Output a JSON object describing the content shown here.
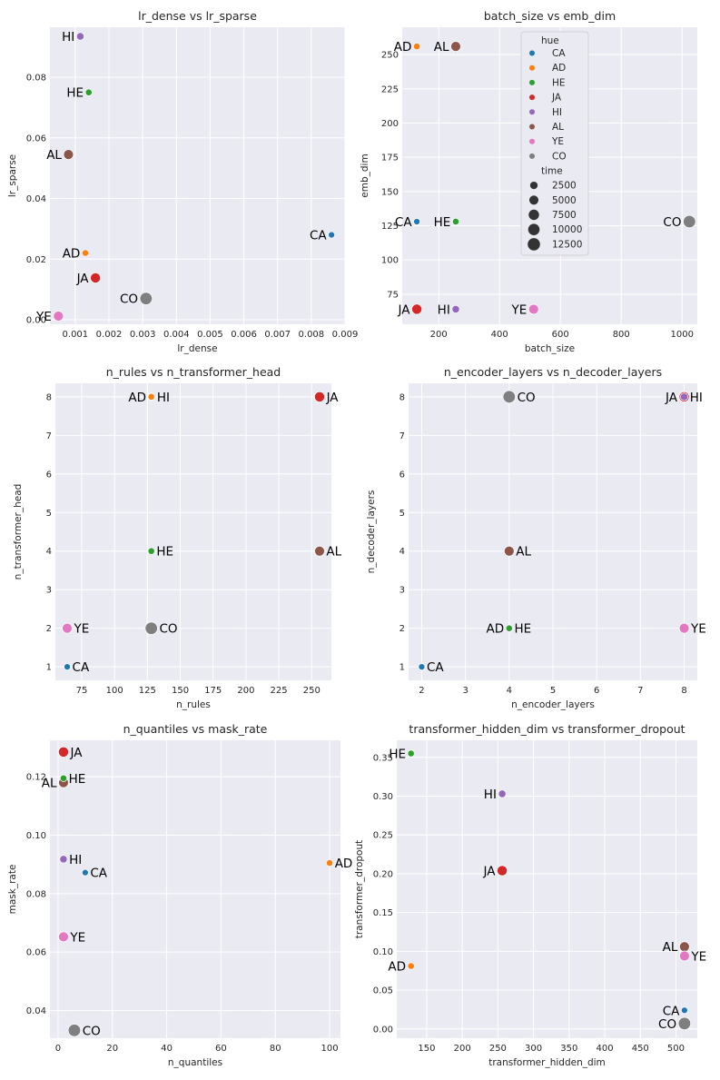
{
  "hue_palette": {
    "CA": "#1f77b4",
    "AD": "#ff7f0e",
    "HE": "#2ca02c",
    "JA": "#d62728",
    "HI": "#9467bd",
    "AL": "#8c564b",
    "YE": "#e377c2",
    "CO": "#7f7f7f"
  },
  "colors": {
    "axes_bg": "#eaeaf2",
    "grid": "#ffffff",
    "text": "#262626"
  },
  "legend": {
    "hue_title": "hue",
    "hue_entries": [
      "CA",
      "AD",
      "HE",
      "JA",
      "HI",
      "AL",
      "YE",
      "CO"
    ],
    "size_title": "time",
    "size_entries": [
      "2500",
      "5000",
      "7500",
      "10000",
      "12500"
    ]
  },
  "chart_data": [
    {
      "type": "scatter",
      "title": "lr_dense vs lr_sparse",
      "xlabel": "lr_dense",
      "ylabel": "lr_sparse",
      "xlim": [
        0.00025,
        0.009
      ],
      "ylim": [
        -0.0015,
        0.0965
      ],
      "xticks": [
        "0.001",
        "0.002",
        "0.003",
        "0.004",
        "0.005",
        "0.006",
        "0.007",
        "0.008",
        "0.009"
      ],
      "yticks": [
        "0.00",
        "0.02",
        "0.04",
        "0.06",
        "0.08"
      ],
      "points": [
        {
          "label": "HI",
          "x": 0.00115,
          "y": 0.0935,
          "size": 2500,
          "text_side": "left"
        },
        {
          "label": "HE",
          "x": 0.0014,
          "y": 0.075,
          "size": 1500,
          "text_side": "left"
        },
        {
          "label": "AL",
          "x": 0.0008,
          "y": 0.0545,
          "size": 6500,
          "text_side": "left"
        },
        {
          "label": "CA",
          "x": 0.0086,
          "y": 0.028,
          "size": 1200,
          "text_side": "left"
        },
        {
          "label": "AD",
          "x": 0.0013,
          "y": 0.022,
          "size": 1500,
          "text_side": "left"
        },
        {
          "label": "JA",
          "x": 0.0016,
          "y": 0.0138,
          "size": 7000,
          "text_side": "left"
        },
        {
          "label": "CO",
          "x": 0.0031,
          "y": 0.007,
          "size": 12500,
          "text_side": "left"
        },
        {
          "label": "YE",
          "x": 0.0005,
          "y": 0.0012,
          "size": 6500,
          "text_side": "left"
        }
      ]
    },
    {
      "type": "scatter",
      "title": "batch_size vs emb_dim",
      "xlabel": "batch_size",
      "ylabel": "emb_dim",
      "xlim": [
        80,
        1050
      ],
      "ylim": [
        53,
        270
      ],
      "xticks": [
        "200",
        "400",
        "600",
        "800",
        "1000"
      ],
      "yticks": [
        "75",
        "100",
        "125",
        "150",
        "175",
        "200",
        "225",
        "250"
      ],
      "points": [
        {
          "label": "AD",
          "x": 128,
          "y": 256,
          "size": 1500,
          "text_side": "left"
        },
        {
          "label": "AL",
          "x": 256,
          "y": 256,
          "size": 6500,
          "text_side": "left"
        },
        {
          "label": "CA",
          "x": 128,
          "y": 128,
          "size": 1200,
          "text_side": "left"
        },
        {
          "label": "HE",
          "x": 256,
          "y": 128,
          "size": 1500,
          "text_side": "left"
        },
        {
          "label": "CO",
          "x": 1024,
          "y": 128,
          "size": 12500,
          "text_side": "left"
        },
        {
          "label": "JA",
          "x": 128,
          "y": 64,
          "size": 7000,
          "text_side": "left"
        },
        {
          "label": "HI",
          "x": 256,
          "y": 64,
          "size": 2500,
          "text_side": "left"
        },
        {
          "label": "YE",
          "x": 512,
          "y": 64,
          "size": 6500,
          "text_side": "left"
        }
      ]
    },
    {
      "type": "scatter",
      "title": "n_rules vs n_transformer_head",
      "xlabel": "n_rules",
      "ylabel": "n_transformer_head",
      "xlim": [
        55,
        265
      ],
      "ylim": [
        0.65,
        8.35
      ],
      "xticks": [
        "75",
        "100",
        "125",
        "150",
        "175",
        "200",
        "225",
        "250"
      ],
      "yticks": [
        "1",
        "2",
        "3",
        "4",
        "5",
        "6",
        "7",
        "8"
      ],
      "points": [
        {
          "label": "AD",
          "x": 128,
          "y": 8,
          "size": 1500,
          "text_side": "left"
        },
        {
          "label": "HI",
          "x": 128,
          "y": 8,
          "size": 2500,
          "text_side": "right"
        },
        {
          "label": "JA",
          "x": 256,
          "y": 8,
          "size": 7000,
          "text_side": "right"
        },
        {
          "label": "HE",
          "x": 128,
          "y": 4,
          "size": 1500,
          "text_side": "right"
        },
        {
          "label": "AL",
          "x": 256,
          "y": 4,
          "size": 6500,
          "text_side": "right"
        },
        {
          "label": "YE",
          "x": 64,
          "y": 2,
          "size": 6500,
          "text_side": "right"
        },
        {
          "label": "CO",
          "x": 128,
          "y": 2,
          "size": 12500,
          "text_side": "right"
        },
        {
          "label": "CA",
          "x": 64,
          "y": 1,
          "size": 1200,
          "text_side": "right"
        }
      ]
    },
    {
      "type": "scatter",
      "title": "n_encoder_layers vs n_decoder_layers",
      "xlabel": "n_encoder_layers",
      "ylabel": "n_decoder_layers",
      "xlim": [
        1.7,
        8.3
      ],
      "ylim": [
        0.65,
        8.35
      ],
      "xticks": [
        "2",
        "3",
        "4",
        "5",
        "6",
        "7",
        "8"
      ],
      "yticks": [
        "1",
        "2",
        "3",
        "4",
        "5",
        "6",
        "7",
        "8"
      ],
      "points": [
        {
          "label": "CO",
          "x": 4,
          "y": 8,
          "size": 12500,
          "text_side": "right"
        },
        {
          "label": "JA",
          "x": 8,
          "y": 8,
          "size": 7000,
          "text_side": "left"
        },
        {
          "label": "HI",
          "x": 8,
          "y": 8,
          "size": 2500,
          "text_side": "right"
        },
        {
          "label": "AL",
          "x": 4,
          "y": 4,
          "size": 6500,
          "text_side": "right"
        },
        {
          "label": "AD",
          "x": 4,
          "y": 2,
          "size": 1500,
          "text_side": "left"
        },
        {
          "label": "HE",
          "x": 4,
          "y": 2,
          "size": 1500,
          "text_side": "right"
        },
        {
          "label": "YE",
          "x": 8,
          "y": 2,
          "size": 6500,
          "text_side": "right"
        },
        {
          "label": "CA",
          "x": 2,
          "y": 1,
          "size": 1200,
          "text_side": "right"
        }
      ]
    },
    {
      "type": "scatter",
      "title": "n_quantiles vs mask_rate",
      "xlabel": "n_quantiles",
      "ylabel": "mask_rate",
      "xlim": [
        -3,
        104
      ],
      "ylim": [
        0.0305,
        0.1325
      ],
      "xticks": [
        "0",
        "20",
        "40",
        "60",
        "80",
        "100"
      ],
      "yticks": [
        "0.04",
        "0.06",
        "0.08",
        "0.10",
        "0.12"
      ],
      "points": [
        {
          "label": "JA",
          "x": 2,
          "y": 0.1285,
          "size": 7000,
          "text_side": "right"
        },
        {
          "label": "HE",
          "x": 2,
          "y": 0.1195,
          "size": 1500,
          "text_side": "right"
        },
        {
          "label": "AL",
          "x": 2,
          "y": 0.118,
          "size": 6500,
          "text_side": "left"
        },
        {
          "label": "HI",
          "x": 2,
          "y": 0.0918,
          "size": 2500,
          "text_side": "right"
        },
        {
          "label": "AD",
          "x": 100,
          "y": 0.0905,
          "size": 1500,
          "text_side": "right"
        },
        {
          "label": "CA",
          "x": 10,
          "y": 0.0872,
          "size": 1200,
          "text_side": "right"
        },
        {
          "label": "YE",
          "x": 2,
          "y": 0.0652,
          "size": 6500,
          "text_side": "right"
        },
        {
          "label": "CO",
          "x": 6,
          "y": 0.0332,
          "size": 12500,
          "text_side": "right"
        }
      ]
    },
    {
      "type": "scatter",
      "title": "transformer_hidden_dim vs transformer_dropout",
      "xlabel": "transformer_hidden_dim",
      "ylabel": "transformer_dropout",
      "xlim": [
        108,
        530
      ],
      "ylim": [
        -0.012,
        0.372
      ],
      "xticks": [
        "150",
        "200",
        "250",
        "300",
        "350",
        "400",
        "450",
        "500"
      ],
      "yticks": [
        "0.00",
        "0.05",
        "0.10",
        "0.15",
        "0.20",
        "0.25",
        "0.30",
        "0.35"
      ],
      "points": [
        {
          "label": "HE",
          "x": 128,
          "y": 0.355,
          "size": 1500,
          "text_side": "left"
        },
        {
          "label": "HI",
          "x": 256,
          "y": 0.303,
          "size": 2500,
          "text_side": "left"
        },
        {
          "label": "JA",
          "x": 256,
          "y": 0.204,
          "size": 7000,
          "text_side": "left"
        },
        {
          "label": "AL",
          "x": 512,
          "y": 0.106,
          "size": 6500,
          "text_side": "left"
        },
        {
          "label": "YE",
          "x": 512,
          "y": 0.094,
          "size": 6500,
          "text_side": "right"
        },
        {
          "label": "AD",
          "x": 128,
          "y": 0.081,
          "size": 1500,
          "text_side": "left"
        },
        {
          "label": "CA",
          "x": 512,
          "y": 0.024,
          "size": 1200,
          "text_side": "left"
        },
        {
          "label": "CO",
          "x": 512,
          "y": 0.007,
          "size": 12500,
          "text_side": "left"
        }
      ]
    }
  ]
}
